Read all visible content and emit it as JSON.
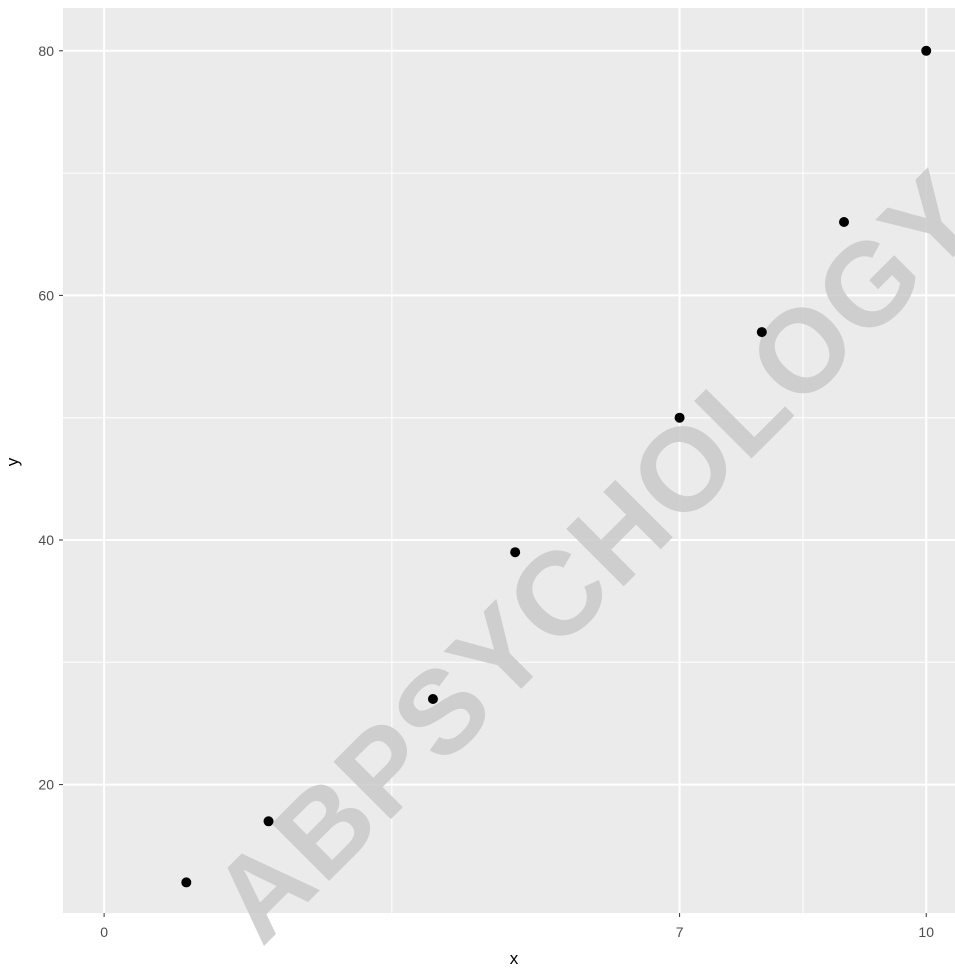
{
  "chart_data": {
    "type": "scatter",
    "title": "",
    "xlabel": "x",
    "ylabel": "y",
    "xlim": [
      -0.5,
      10.35
    ],
    "ylim": [
      9.5,
      83.5
    ],
    "x_ticks": [
      0,
      7,
      10
    ],
    "x_minor_ticks": [
      3.5,
      8.5
    ],
    "y_ticks": [
      20,
      40,
      60,
      80
    ],
    "y_minor_ticks": [
      30,
      50,
      70
    ],
    "grid": true,
    "background": "#ebebeb",
    "grid_color": "#ffffff",
    "point_color": "#000000",
    "points": [
      {
        "x": 1,
        "y": 12
      },
      {
        "x": 2,
        "y": 17
      },
      {
        "x": 4,
        "y": 27
      },
      {
        "x": 5,
        "y": 39
      },
      {
        "x": 7,
        "y": 50
      },
      {
        "x": 8,
        "y": 57
      },
      {
        "x": 9,
        "y": 66
      },
      {
        "x": 10,
        "y": 80
      }
    ],
    "watermark": "ABPSYCHOLOGY"
  }
}
